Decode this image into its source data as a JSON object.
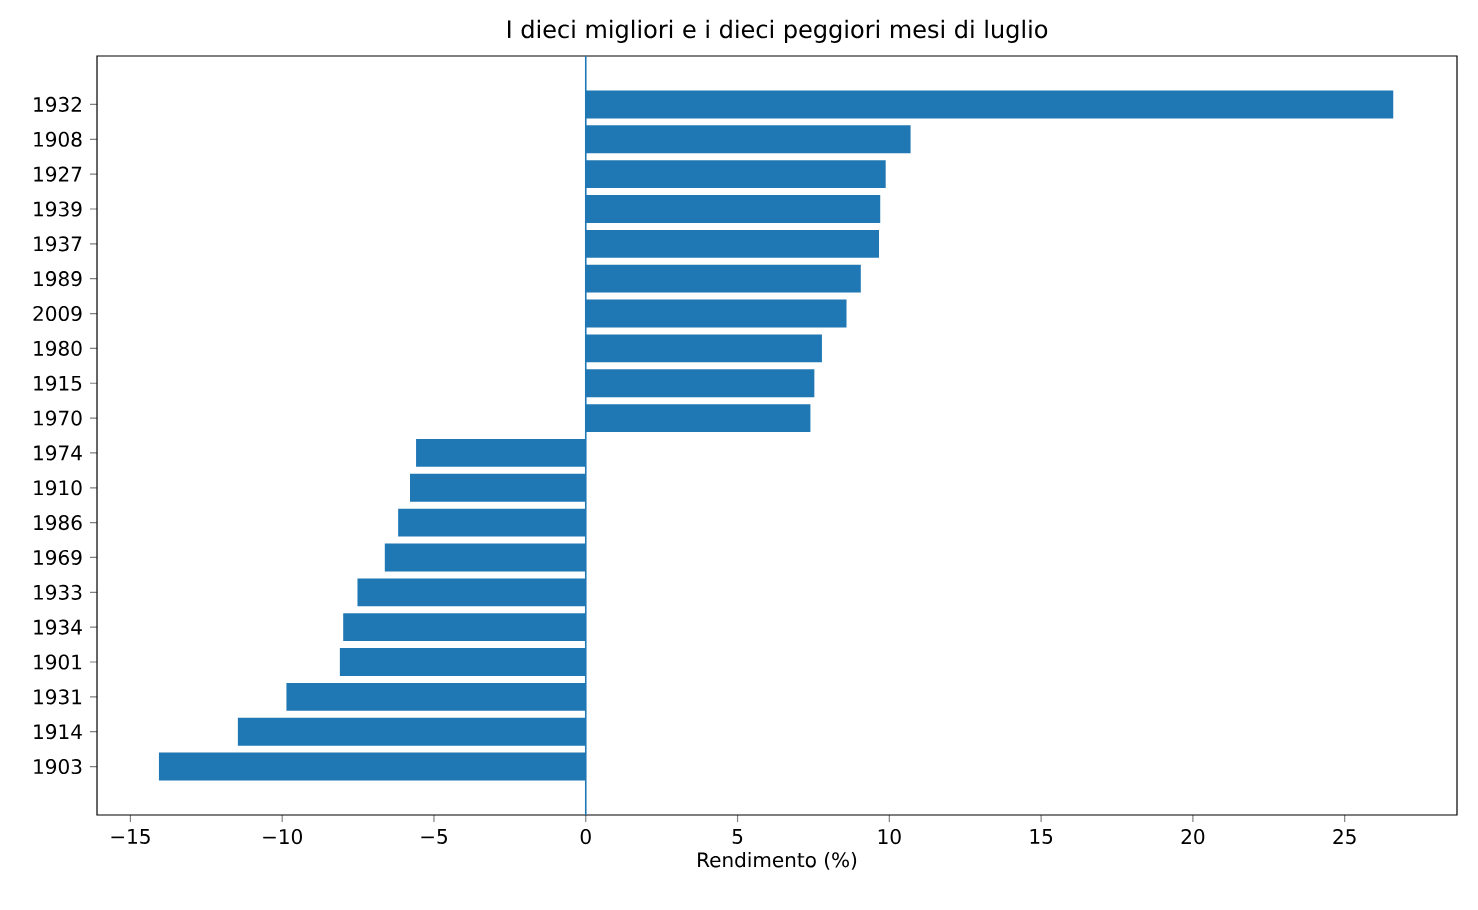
{
  "chart_data": {
    "type": "bar",
    "orientation": "horizontal",
    "title": "I dieci migliori e i dieci peggiori mesi di luglio",
    "xlabel": "Rendimento (%)",
    "categories": [
      "1932",
      "1908",
      "1927",
      "1939",
      "1937",
      "1989",
      "2009",
      "1980",
      "1915",
      "1970",
      "1974",
      "1910",
      "1986",
      "1969",
      "1933",
      "1934",
      "1901",
      "1931",
      "1914",
      "1903"
    ],
    "values": [
      26.6,
      10.7,
      9.88,
      9.7,
      9.66,
      9.06,
      8.59,
      7.78,
      7.53,
      7.4,
      -5.59,
      -5.79,
      -6.18,
      -6.62,
      -7.52,
      -7.99,
      -8.1,
      -9.86,
      -11.46,
      -14.06
    ],
    "color": "#1f77b4",
    "xlim": [
      -16.1,
      28.7
    ],
    "xticks": [
      {
        "value": -15,
        "label": "−15"
      },
      {
        "value": -10,
        "label": "−10"
      },
      {
        "value": -5,
        "label": "−5"
      },
      0,
      5,
      10,
      15,
      20,
      25
    ],
    "ref_lines": [
      {
        "axis": "x",
        "value": 0,
        "color": "#1f77b4"
      }
    ],
    "grid": false
  }
}
